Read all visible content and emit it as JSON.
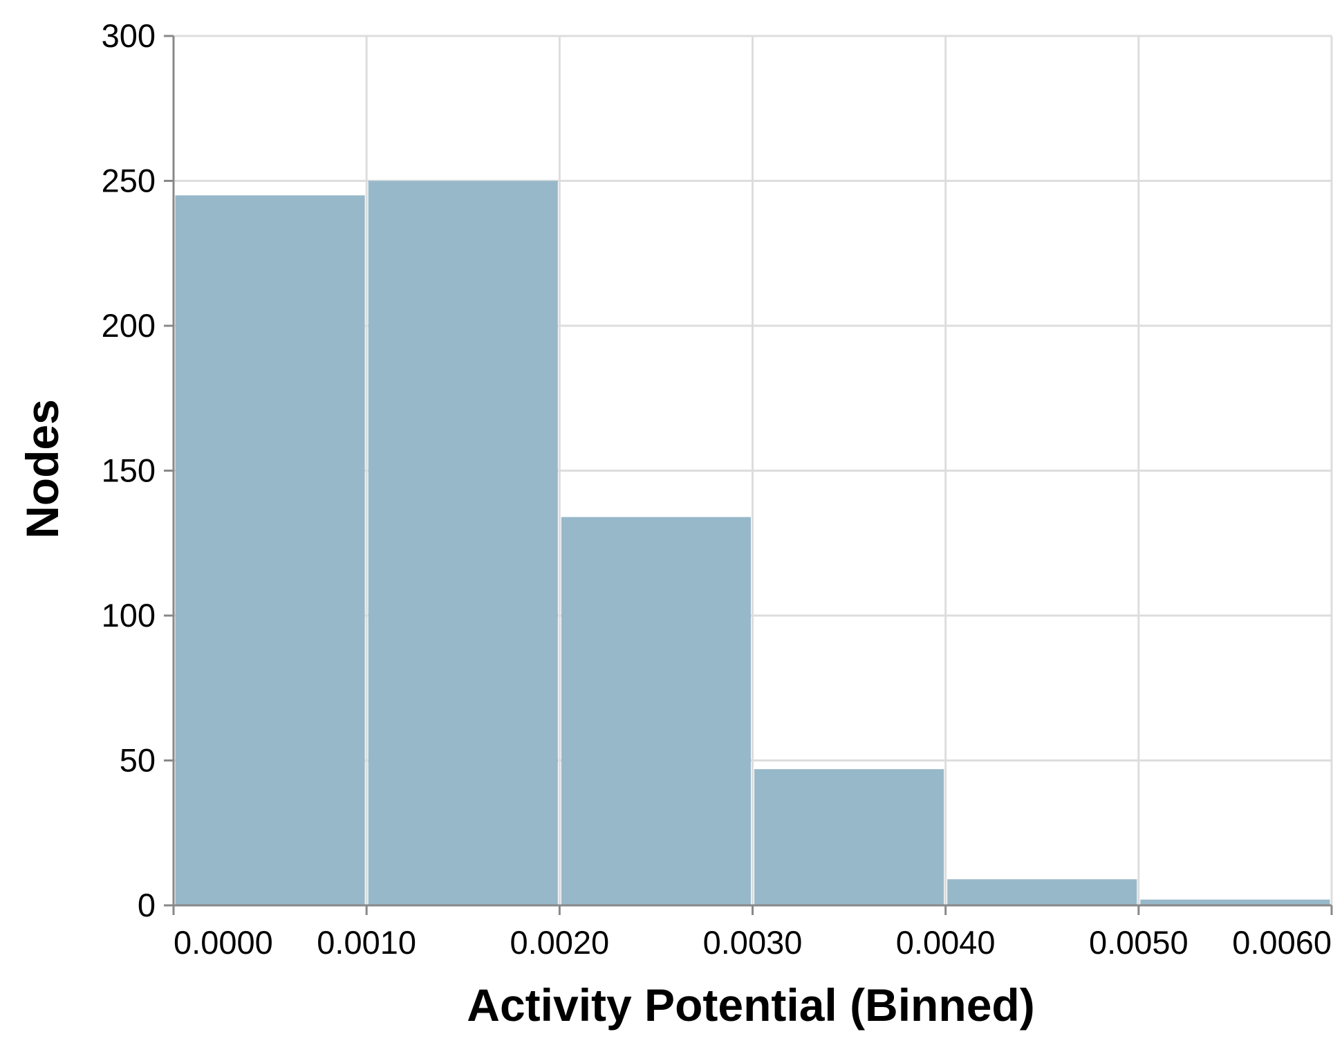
{
  "chart_data": {
    "type": "bar",
    "title": "",
    "xlabel": "Activity Potential (Binned)",
    "ylabel": "Nodes",
    "bins": [
      {
        "start": 0.0,
        "end": 0.001,
        "value": 245
      },
      {
        "start": 0.001,
        "end": 0.002,
        "value": 250
      },
      {
        "start": 0.002,
        "end": 0.003,
        "value": 134
      },
      {
        "start": 0.003,
        "end": 0.004,
        "value": 47
      },
      {
        "start": 0.004,
        "end": 0.005,
        "value": 9
      },
      {
        "start": 0.005,
        "end": 0.006,
        "value": 2
      }
    ],
    "xlim": [
      0,
      0.006
    ],
    "ylim": [
      0,
      300
    ],
    "x_ticks": [
      {
        "value": 0.0,
        "label": "0.0000"
      },
      {
        "value": 0.001,
        "label": "0.0010"
      },
      {
        "value": 0.002,
        "label": "0.0020"
      },
      {
        "value": 0.003,
        "label": "0.0030"
      },
      {
        "value": 0.004,
        "label": "0.0040"
      },
      {
        "value": 0.005,
        "label": "0.0050"
      },
      {
        "value": 0.006,
        "label": "0.0060"
      }
    ],
    "y_ticks": [
      {
        "value": 0,
        "label": "0"
      },
      {
        "value": 50,
        "label": "50"
      },
      {
        "value": 100,
        "label": "100"
      },
      {
        "value": 150,
        "label": "150"
      },
      {
        "value": 200,
        "label": "200"
      },
      {
        "value": 250,
        "label": "250"
      },
      {
        "value": 300,
        "label": "300"
      }
    ],
    "grid": true,
    "colors": {
      "bar": "#97b8c9",
      "grid": "#dddddd",
      "axis": "#888888"
    }
  }
}
